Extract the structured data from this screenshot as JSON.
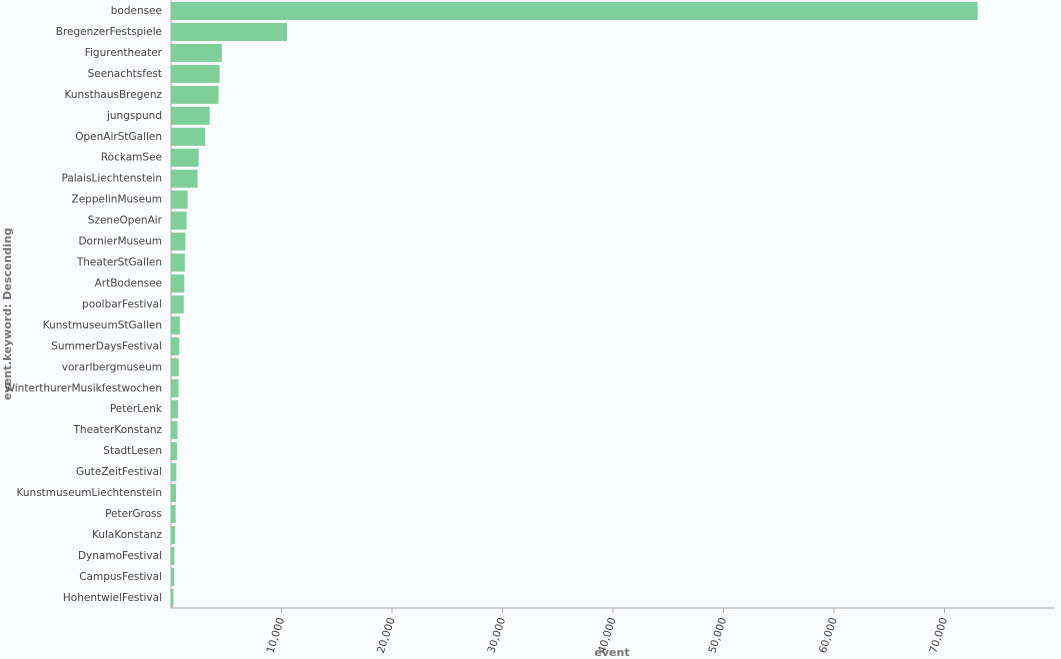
{
  "chart_data": {
    "type": "hbar",
    "x_label": "event",
    "y_label": "event.keyword: Descending",
    "color": "#7ecf9a",
    "categories": [
      "bodensee",
      "BregenzerFestspiele",
      "Figurentheater",
      "Seenachtsfest",
      "KunsthausBregenz",
      "jungspund",
      "OpenAirStGallen",
      "RockamSee",
      "PalaisLiechtenstein",
      "ZeppelinMuseum",
      "SzeneOpenAir",
      "DornierMuseum",
      "TheaterStGallen",
      "ArtBodensee",
      "poolbarFestival",
      "KunstmuseumStGallen",
      "SummerDaysFestival",
      "vorarlbergmuseum",
      "WinterthurerMusikfestwochen",
      "PeterLenk",
      "TheaterKonstanz",
      "StadtLesen",
      "GuteZeitFestival",
      "KunstmuseumLiechtenstein",
      "PeterGross",
      "KulaKonstanz",
      "DynamoFestival",
      "CampusFestival",
      "HohentwielFestival"
    ],
    "values": [
      73000,
      10500,
      4600,
      4400,
      4300,
      3500,
      3100,
      2500,
      2400,
      1500,
      1400,
      1300,
      1250,
      1200,
      1150,
      800,
      750,
      700,
      680,
      620,
      580,
      550,
      480,
      450,
      420,
      380,
      300,
      280,
      220
    ],
    "xlim": [
      0,
      80000
    ],
    "xticks": [
      {
        "value": 10000,
        "label": "10,000"
      },
      {
        "value": 20000,
        "label": "20,000"
      },
      {
        "value": 30000,
        "label": "30,000"
      },
      {
        "value": 40000,
        "label": "40,000"
      },
      {
        "value": 50000,
        "label": "50,000"
      },
      {
        "value": 60000,
        "label": "60,000"
      },
      {
        "value": 70000,
        "label": "70,000"
      }
    ]
  }
}
